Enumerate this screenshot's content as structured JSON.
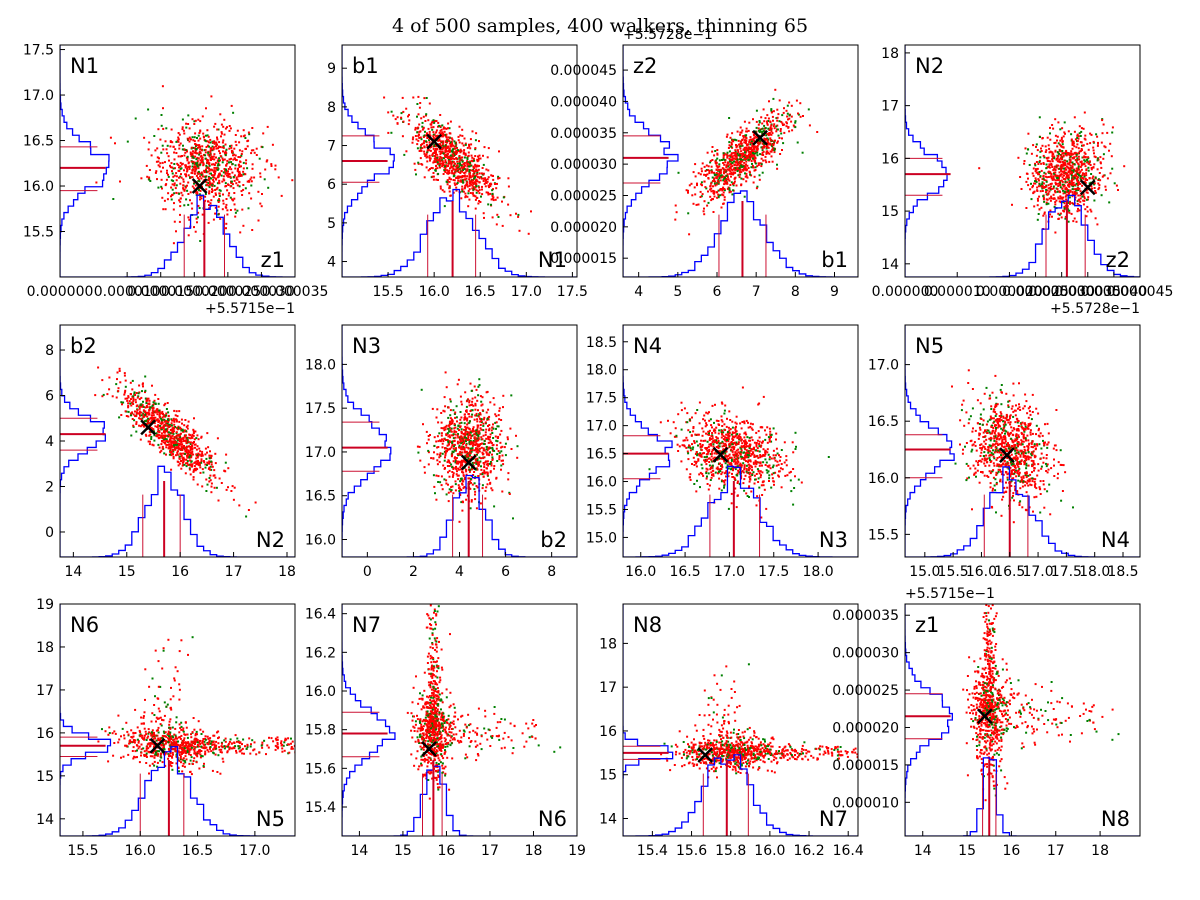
{
  "title": "4 of 500 samples, 400 walkers, thinning 65",
  "colors": {
    "hist": "#0000ff",
    "median": "#cc0022",
    "percentile": "#cc1133",
    "points_primary": "#ff0000",
    "points_secondary": "#008000",
    "marker": "#000000"
  },
  "chart_data": [
    {
      "type": "scatter",
      "xname": "z1",
      "yname": "N1",
      "xlim": [
        0,
        3.5e-05
      ],
      "ylim": [
        15.0,
        17.55
      ],
      "xticks": [
        0,
        1e-05,
        1.5e-05,
        2e-05,
        2.5e-05,
        3e-05,
        3.5e-05
      ],
      "xticklabels": [
        "0.000000",
        "0.000010",
        "0.000015",
        "0.000020",
        "0.000025",
        "0.000030",
        "0.000035"
      ],
      "yticks": [
        15.5,
        16.0,
        16.5,
        17.0,
        17.5
      ],
      "yticklabels": [
        "15.5",
        "16.0",
        "16.5",
        "17.0",
        "17.5"
      ],
      "xoffset": "+5.5715e−1",
      "yoffset": "",
      "cx": 2.15e-05,
      "cy": 16.2,
      "sx": 4e-06,
      "sy": 0.25,
      "rho": -0.05,
      "cloud": "normal",
      "best": [
        2.08e-05,
        16.0
      ],
      "xmed": 2.15e-05,
      "xpct": [
        1.85e-05,
        2.45e-05
      ],
      "ymed": 16.2,
      "ypct": [
        15.95,
        16.43
      ]
    },
    {
      "type": "scatter",
      "xname": "N1",
      "yname": "b1",
      "xlim": [
        15.0,
        17.55
      ],
      "ylim": [
        3.6,
        9.6
      ],
      "xticks": [
        15.5,
        16.0,
        16.5,
        17.0,
        17.5
      ],
      "xticklabels": [
        "15.5",
        "16.0",
        "16.5",
        "17.0",
        "17.5"
      ],
      "yticks": [
        4,
        5,
        6,
        7,
        8,
        9
      ],
      "yticklabels": [
        "4",
        "5",
        "6",
        "7",
        "8",
        "9"
      ],
      "xoffset": "",
      "yoffset": "",
      "cx": 16.2,
      "cy": 6.6,
      "sx": 0.25,
      "sy": 0.6,
      "rho": -0.75,
      "cloud": "normal",
      "best": [
        16.0,
        7.1
      ],
      "xmed": 16.2,
      "xpct": [
        15.93,
        16.45
      ],
      "ymed": 6.6,
      "ypct": [
        6.05,
        7.25
      ]
    },
    {
      "type": "scatter",
      "xname": "b1",
      "yname": "z2",
      "xlim": [
        3.6,
        9.6
      ],
      "ylim": [
        1.2e-05,
        4.9e-05
      ],
      "xticks": [
        4,
        5,
        6,
        7,
        8,
        9
      ],
      "xticklabels": [
        "4",
        "5",
        "6",
        "7",
        "8",
        "9"
      ],
      "yticks": [
        1.5e-05,
        2e-05,
        2.5e-05,
        3e-05,
        3.5e-05,
        4e-05,
        4.5e-05
      ],
      "yticklabels": [
        "0.000015",
        "0.000020",
        "0.000025",
        "0.000030",
        "0.000035",
        "0.000040",
        "0.000045"
      ],
      "xoffset": "",
      "yoffset": "+5.5728e−1",
      "cx": 6.65,
      "cy": 3.1e-05,
      "sx": 0.6,
      "sy": 3.5e-06,
      "rho": 0.8,
      "cloud": "normal",
      "best": [
        7.1,
        3.42e-05
      ],
      "xmed": 6.65,
      "xpct": [
        6.05,
        7.25
      ],
      "ymed": 3.1e-05,
      "ypct": [
        2.7e-05,
        3.45e-05
      ]
    },
    {
      "type": "scatter",
      "xname": "z2",
      "yname": "N2",
      "xlim": [
        0,
        4.5e-05
      ],
      "ylim": [
        13.75,
        18.15
      ],
      "xticks": [
        0,
        1e-05,
        2e-05,
        2.5e-05,
        3e-05,
        3.5e-05,
        4e-05,
        4.5e-05
      ],
      "xticklabels": [
        "0.000000",
        "0.000010",
        "0.000020",
        "0.000025",
        "0.000030",
        "0.000035",
        "0.000040",
        "0.000045"
      ],
      "yticks": [
        14,
        15,
        16,
        17,
        18
      ],
      "yticklabels": [
        "14",
        "15",
        "16",
        "17",
        "18"
      ],
      "xoffset": "+5.5728e−1",
      "yoffset": "",
      "cx": 3.1e-05,
      "cy": 15.7,
      "sx": 3.5e-06,
      "sy": 0.4,
      "rho": 0.1,
      "cloud": "normal",
      "best": [
        3.5e-05,
        15.45
      ],
      "xmed": 3.1e-05,
      "xpct": [
        2.7e-05,
        3.45e-05
      ],
      "ymed": 15.7,
      "ypct": [
        15.3,
        16.0
      ]
    },
    {
      "type": "scatter",
      "xname": "N2",
      "yname": "b2",
      "xlim": [
        13.75,
        18.15
      ],
      "ylim": [
        -1.1,
        9.1
      ],
      "xticks": [
        14,
        15,
        16,
        17,
        18
      ],
      "xticklabels": [
        "14",
        "15",
        "16",
        "17",
        "18"
      ],
      "yticks": [
        0,
        2,
        4,
        6,
        8
      ],
      "yticklabels": [
        "0",
        "2",
        "4",
        "6",
        "8"
      ],
      "xoffset": "",
      "yoffset": "",
      "cx": 15.8,
      "cy": 4.3,
      "sx": 0.45,
      "sy": 1.0,
      "rho": -0.85,
      "cloud": "normal",
      "best": [
        15.4,
        4.6
      ],
      "xmed": 15.7,
      "xpct": [
        15.3,
        16.0
      ],
      "ymed": 4.3,
      "ypct": [
        3.6,
        5.0
      ]
    },
    {
      "type": "scatter",
      "xname": "b2",
      "yname": "N3",
      "xlim": [
        -1.1,
        9.1
      ],
      "ylim": [
        15.8,
        18.45
      ],
      "xticks": [
        0,
        2,
        4,
        6,
        8
      ],
      "xticklabels": [
        "0",
        "2",
        "4",
        "6",
        "8"
      ],
      "yticks": [
        16.0,
        16.5,
        17.0,
        17.5,
        18.0
      ],
      "yticklabels": [
        "16.0",
        "16.5",
        "17.0",
        "17.5",
        "18.0"
      ],
      "xoffset": "",
      "yoffset": "",
      "cx": 4.4,
      "cy": 17.05,
      "sx": 0.75,
      "sy": 0.28,
      "rho": 0.05,
      "cloud": "normal",
      "best": [
        4.4,
        16.88
      ],
      "xmed": 4.4,
      "xpct": [
        3.7,
        5.0
      ],
      "ymed": 17.05,
      "ypct": [
        16.78,
        17.34
      ]
    },
    {
      "type": "scatter",
      "xname": "N3",
      "yname": "N4",
      "xlim": [
        15.8,
        18.45
      ],
      "ylim": [
        14.65,
        18.8
      ],
      "xticks": [
        16.0,
        16.5,
        17.0,
        17.5,
        18.0
      ],
      "xticklabels": [
        "16.0",
        "16.5",
        "17.0",
        "17.5",
        "18.0"
      ],
      "yticks": [
        15.0,
        15.5,
        16.0,
        16.5,
        17.0,
        17.5,
        18.0,
        18.5
      ],
      "yticklabels": [
        "15.0",
        "15.5",
        "16.0",
        "16.5",
        "17.0",
        "17.5",
        "18.0",
        "18.5"
      ],
      "xoffset": "",
      "yoffset": "",
      "cx": 17.05,
      "cy": 16.5,
      "sx": 0.28,
      "sy": 0.35,
      "rho": -0.25,
      "cloud": "normal",
      "best": [
        16.9,
        16.48
      ],
      "xmed": 17.05,
      "xpct": [
        16.78,
        17.34
      ],
      "ymed": 16.5,
      "ypct": [
        16.05,
        16.82
      ]
    },
    {
      "type": "scatter",
      "xname": "N4",
      "yname": "N5",
      "xlim": [
        14.65,
        18.8
      ],
      "ylim": [
        15.3,
        17.35
      ],
      "xticks": [
        15.0,
        15.5,
        16.0,
        16.5,
        17.0,
        17.5,
        18.0,
        18.5
      ],
      "xticklabels": [
        "15.0",
        "15.5",
        "16.0",
        "16.5",
        "17.0",
        "17.5",
        "18.0",
        "18.5"
      ],
      "yticks": [
        15.5,
        16.0,
        16.5,
        17.0
      ],
      "yticklabels": [
        "15.5",
        "16.0",
        "16.5",
        "17.0"
      ],
      "xoffset": "",
      "yoffset": "",
      "cx": 16.5,
      "cy": 16.25,
      "sx": 0.35,
      "sy": 0.22,
      "rho": -0.2,
      "cloud": "normal",
      "best": [
        16.45,
        16.2
      ],
      "xmed": 16.5,
      "xpct": [
        16.05,
        16.82
      ],
      "ymed": 16.25,
      "ypct": [
        16.0,
        16.38
      ]
    },
    {
      "type": "scatter",
      "xname": "N5",
      "yname": "N6",
      "xlim": [
        15.3,
        17.35
      ],
      "ylim": [
        13.6,
        19.0
      ],
      "xticks": [
        15.5,
        16.0,
        16.5,
        17.0
      ],
      "xticklabels": [
        "15.5",
        "16.0",
        "16.5",
        "17.0"
      ],
      "yticks": [
        14,
        15,
        16,
        17,
        18,
        19
      ],
      "yticklabels": [
        "14",
        "15",
        "16",
        "17",
        "18",
        "19"
      ],
      "xoffset": "",
      "yoffset": "",
      "cx": 16.25,
      "cy": 15.7,
      "sx": 0.22,
      "sy": 0.25,
      "rho": -0.2,
      "cloud": "lowerL",
      "best": [
        16.15,
        15.7
      ],
      "xmed": 16.25,
      "xpct": [
        16.0,
        16.38
      ],
      "ymed": 15.7,
      "ypct": [
        15.45,
        15.9
      ]
    },
    {
      "type": "scatter",
      "xname": "N6",
      "yname": "N7",
      "xlim": [
        13.6,
        19.0
      ],
      "ylim": [
        15.25,
        16.45
      ],
      "xticks": [
        14,
        15,
        16,
        17,
        18,
        19
      ],
      "xticklabels": [
        "14",
        "15",
        "16",
        "17",
        "18",
        "19"
      ],
      "yticks": [
        15.4,
        15.6,
        15.8,
        16.0,
        16.2,
        16.4
      ],
      "yticklabels": [
        "15.4",
        "15.6",
        "15.8",
        "16.0",
        "16.2",
        "16.4"
      ],
      "xoffset": "",
      "yoffset": "",
      "cx": 15.7,
      "cy": 15.78,
      "sx": 0.2,
      "sy": 0.12,
      "rho": 0.0,
      "cloud": "upperL",
      "best": [
        15.6,
        15.7
      ],
      "xmed": 15.7,
      "xpct": [
        15.45,
        15.9
      ],
      "ymed": 15.78,
      "ypct": [
        15.66,
        15.89
      ]
    },
    {
      "type": "scatter",
      "xname": "N7",
      "yname": "N8",
      "xlim": [
        15.25,
        16.45
      ],
      "ylim": [
        13.6,
        18.9
      ],
      "xticks": [
        15.4,
        15.6,
        15.8,
        16.0,
        16.2,
        16.4
      ],
      "xticklabels": [
        "15.4",
        "15.6",
        "15.8",
        "16.0",
        "16.2",
        "16.4"
      ],
      "yticks": [
        14,
        15,
        16,
        17,
        18
      ],
      "yticklabels": [
        "14",
        "15",
        "16",
        "17",
        "18"
      ],
      "xoffset": "",
      "yoffset": "",
      "cx": 15.78,
      "cy": 15.5,
      "sx": 0.12,
      "sy": 0.2,
      "rho": 0.0,
      "cloud": "lowerL",
      "best": [
        15.67,
        15.45
      ],
      "xmed": 15.78,
      "xpct": [
        15.66,
        15.89
      ],
      "ymed": 15.5,
      "ypct": [
        15.35,
        15.65
      ]
    },
    {
      "type": "scatter",
      "xname": "N8",
      "yname": "z1",
      "xlim": [
        13.6,
        18.9
      ],
      "ylim": [
        5.5e-06,
        3.65e-05
      ],
      "xticks": [
        14,
        15,
        16,
        17,
        18
      ],
      "xticklabels": [
        "14",
        "15",
        "16",
        "17",
        "18"
      ],
      "yticks": [
        1e-05,
        1.5e-05,
        2e-05,
        2.5e-05,
        3e-05,
        3.5e-05
      ],
      "yticklabels": [
        "0.000010",
        "0.000015",
        "0.000020",
        "0.000025",
        "0.000030",
        "0.000035"
      ],
      "xoffset": "",
      "yoffset": "+5.5715e−1",
      "cx": 15.5,
      "cy": 2.15e-05,
      "sx": 0.2,
      "sy": 4e-06,
      "rho": 0.0,
      "cloud": "upperL",
      "best": [
        15.4,
        2.15e-05
      ],
      "xmed": 15.5,
      "xpct": [
        15.35,
        15.65
      ],
      "ymed": 2.15e-05,
      "ypct": [
        1.85e-05,
        2.45e-05
      ]
    }
  ]
}
